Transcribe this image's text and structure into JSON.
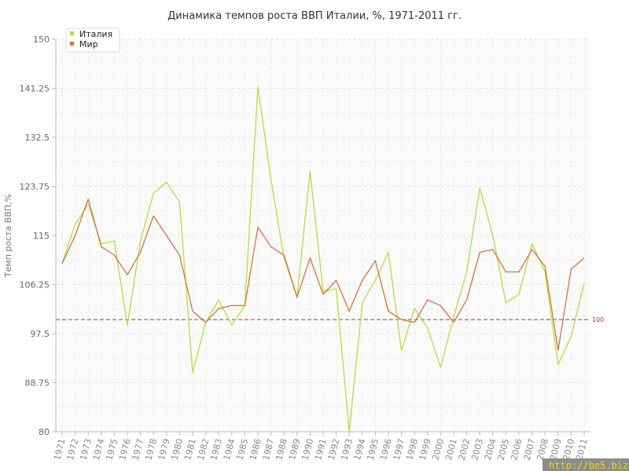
{
  "chart_data": {
    "type": "line",
    "title": "Динамика темпов роста ВВП Италии, %, 1971-2011 гг.",
    "ylabel": "Темп роста ВВП,%",
    "xlabel": "",
    "ylim": [
      80,
      150
    ],
    "yticks": [
      "80",
      "88.75",
      "97.5",
      "106.25",
      "115",
      "123.75",
      "132.5",
      "141.25",
      "150"
    ],
    "grid": true,
    "legend_position": "top-left",
    "reference_line": {
      "value": 100,
      "label": "100",
      "color": "#9b3a3a"
    },
    "x": [
      "1971",
      "1972",
      "1973",
      "1974",
      "1975",
      "1976",
      "1977",
      "1978",
      "1979",
      "1980",
      "1981",
      "1982",
      "1983",
      "1984",
      "1985",
      "1986",
      "1987",
      "1988",
      "1989",
      "1990",
      "1991",
      "1992",
      "1993",
      "1994",
      "1995",
      "1996",
      "1997",
      "1998",
      "1999",
      "2000",
      "2001",
      "2002",
      "2003",
      "2004",
      "2005",
      "2006",
      "2007",
      "2008",
      "2009",
      "2010",
      "2011"
    ],
    "series": [
      {
        "name": "Италия",
        "color": "#b5df3c",
        "values": [
          110,
          117,
          120.5,
          113.5,
          114,
          99,
          114,
          122.5,
          124.5,
          121,
          90.5,
          99.5,
          103.5,
          99,
          102.5,
          141.5,
          125,
          111,
          104,
          126.5,
          105,
          105.5,
          80,
          103,
          107,
          112,
          94.5,
          102,
          98.5,
          91.5,
          100.5,
          108.5,
          123.5,
          115,
          103,
          104.5,
          113.5,
          108.5,
          92,
          97,
          106.5
        ]
      },
      {
        "name": "Мир",
        "color": "#e07040",
        "values": [
          110,
          115,
          121.5,
          113,
          111.5,
          108,
          112,
          118.5,
          115,
          111.5,
          101.5,
          99.5,
          102,
          102.5,
          102.5,
          116.5,
          113,
          111.5,
          104,
          111,
          104.5,
          107,
          101.5,
          107,
          110.5,
          101.5,
          100,
          99.5,
          103.5,
          102.5,
          99.5,
          103.5,
          112,
          112.5,
          108.5,
          108.5,
          112.5,
          109.5,
          94.5,
          109,
          111
        ]
      }
    ]
  },
  "watermark": "http://be5.biz/"
}
